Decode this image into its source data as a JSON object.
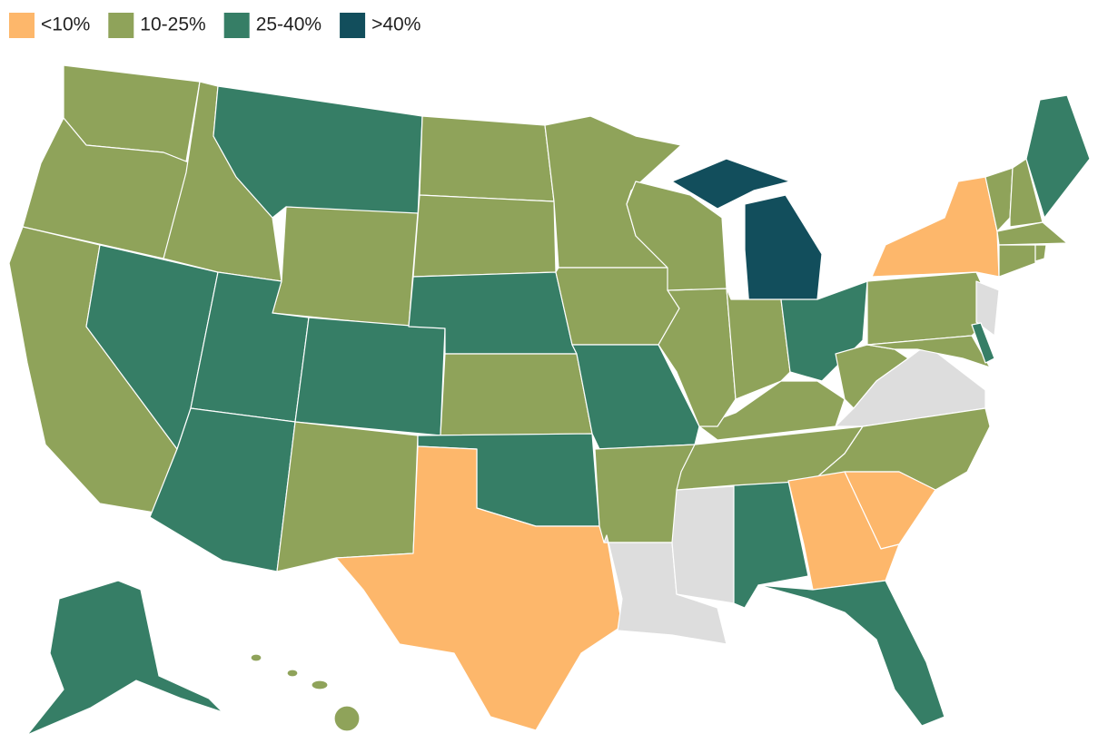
{
  "legend": {
    "items": [
      {
        "label": "<10%",
        "color": "#fdb76b"
      },
      {
        "label": "10-25%",
        "color": "#8fa35a"
      },
      {
        "label": "25-40%",
        "color": "#367e66"
      },
      {
        "label": ">40%",
        "color": "#124e5c"
      }
    ]
  },
  "no_data_color": "#dddddd"
}
